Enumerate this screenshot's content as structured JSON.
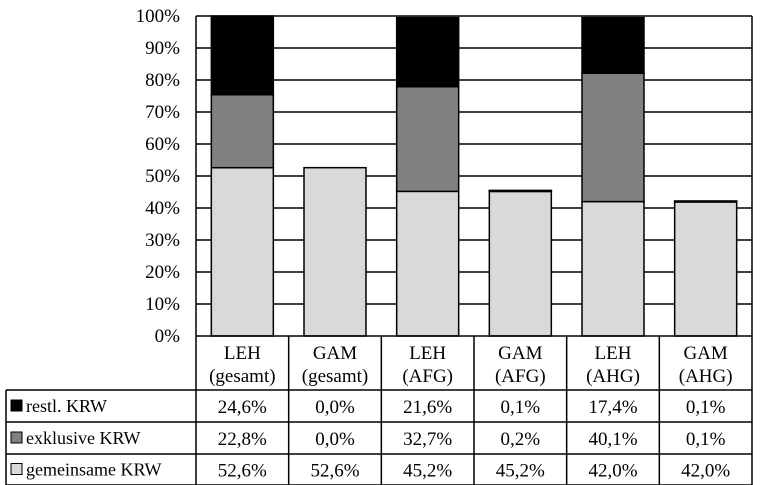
{
  "chart_data": {
    "type": "bar",
    "stacked": true,
    "categories": [
      [
        "LEH",
        "(gesamt)"
      ],
      [
        "GAM",
        "(gesamt)"
      ],
      [
        "LEH",
        "(AFG)"
      ],
      [
        "GAM",
        "(AFG)"
      ],
      [
        "LEH",
        "(AHG)"
      ],
      [
        "GAM",
        "(AHG)"
      ]
    ],
    "series": [
      {
        "name": "gemeinsame KRW",
        "color": "#d9d9d9",
        "values": [
          52.6,
          52.6,
          45.2,
          45.2,
          42.0,
          42.0
        ],
        "labels": [
          "52,6%",
          "52,6%",
          "45,2%",
          "45,2%",
          "42,0%",
          "42,0%"
        ]
      },
      {
        "name": "exklusive KRW",
        "color": "#808080",
        "values": [
          22.8,
          0.0,
          32.7,
          0.2,
          40.1,
          0.1
        ],
        "labels": [
          "22,8%",
          "0,0%",
          "32,7%",
          "0,2%",
          "40,1%",
          "0,1%"
        ]
      },
      {
        "name": "restl. KRW",
        "color": "#000000",
        "values": [
          24.6,
          0.0,
          21.6,
          0.1,
          17.4,
          0.1
        ],
        "labels": [
          "24,6%",
          "0,0%",
          "21,6%",
          "0,1%",
          "17,4%",
          "0,1%"
        ]
      }
    ],
    "table_row_order": [
      "restl. KRW",
      "exklusive KRW",
      "gemeinsame KRW"
    ],
    "ylim": [
      0,
      100
    ],
    "yticks": [
      "0%",
      "10%",
      "20%",
      "30%",
      "40%",
      "50%",
      "60%",
      "70%",
      "80%",
      "90%",
      "100%"
    ],
    "grid": true,
    "legend": "data-table-left",
    "title": "",
    "xlabel": "",
    "ylabel": ""
  }
}
